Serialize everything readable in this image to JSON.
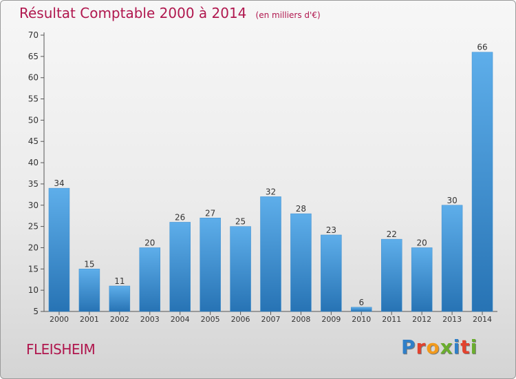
{
  "title": "Résultat Comptable 2000 à 2014",
  "subtitle": "(en milliers d'€)",
  "city": "FLEISHEIM",
  "logo": {
    "text": "Proxiti",
    "letters": [
      {
        "ch": "P",
        "color": "#2f7fc8"
      },
      {
        "ch": "r",
        "color": "#e2422e"
      },
      {
        "ch": "o",
        "color": "#f29a1c"
      },
      {
        "ch": "x",
        "color": "#6aad2e"
      },
      {
        "ch": "i",
        "color": "#2f7fc8"
      },
      {
        "ch": "t",
        "color": "#e2422e"
      },
      {
        "ch": "i",
        "color": "#6aad2e"
      }
    ]
  },
  "colors": {
    "title": "#b0174e",
    "bar_light": "#5eaeea",
    "bar_dark": "#2773b4",
    "axis": "#555555"
  },
  "chart_data": {
    "type": "bar",
    "title": "Résultat Comptable 2000 à 2014",
    "subtitle": "(en milliers d'€)",
    "categories": [
      "2000",
      "2001",
      "2002",
      "2003",
      "2004",
      "2005",
      "2006",
      "2007",
      "2008",
      "2009",
      "2010",
      "2011",
      "2012",
      "2013",
      "2014"
    ],
    "values": [
      34,
      15,
      11,
      20,
      26,
      27,
      25,
      32,
      28,
      23,
      6,
      22,
      20,
      30,
      66
    ],
    "ylim": [
      5,
      70
    ],
    "yticks": [
      5,
      10,
      15,
      20,
      25,
      30,
      35,
      40,
      45,
      50,
      55,
      60,
      65,
      70
    ],
    "grid": false,
    "data_labels": true
  }
}
